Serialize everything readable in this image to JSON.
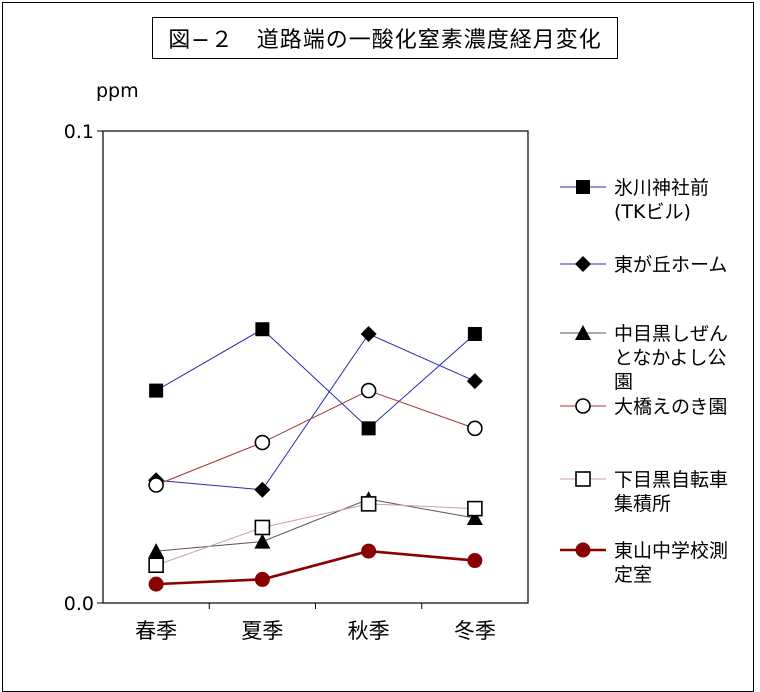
{
  "chart_data": {
    "type": "line",
    "title": "図−２　道路端の一酸化窒素濃度経月変化",
    "ylabel": "ppm",
    "ylim": [
      0.0,
      0.1
    ],
    "yticks": [
      "0.0",
      "0.1"
    ],
    "categories": [
      "春季",
      "夏季",
      "秋季",
      "冬季"
    ],
    "grid": false,
    "legend_position": "right",
    "series": [
      {
        "name": "氷川神社前(TKビル)",
        "values": [
          0.045,
          0.058,
          0.037,
          0.057
        ],
        "color": "#2b2bb0",
        "marker": "filled-square"
      },
      {
        "name": "東が丘ホーム",
        "values": [
          0.026,
          0.024,
          0.057,
          0.047
        ],
        "color": "#2b2bb0",
        "marker": "filled-diamond"
      },
      {
        "name": "中目黒しぜんとなかよし公園",
        "values": [
          0.011,
          0.013,
          0.022,
          0.018
        ],
        "color": "#555555",
        "marker": "filled-triangle"
      },
      {
        "name": "大橋えのき園",
        "values": [
          0.025,
          0.034,
          0.045,
          0.037
        ],
        "color": "#a33333",
        "marker": "open-circle"
      },
      {
        "name": "下目黒自転車集積所",
        "values": [
          0.008,
          0.016,
          0.021,
          0.02
        ],
        "color": "#c9a0a0",
        "marker": "open-square"
      },
      {
        "name": "東山中学校測定室",
        "values": [
          0.004,
          0.005,
          0.011,
          0.009
        ],
        "color": "#8b0000",
        "marker": "filled-circle-bold"
      }
    ],
    "legend_labels": [
      [
        "氷川神社前",
        "(TKビル)"
      ],
      [
        "東が丘ホーム"
      ],
      [
        "中目黒しぜん",
        "となかよし公",
        "園"
      ],
      [
        "大橋えのき園"
      ],
      [
        "下目黒自転車",
        "集積所"
      ],
      [
        "東山中学校測",
        "定室"
      ]
    ]
  }
}
